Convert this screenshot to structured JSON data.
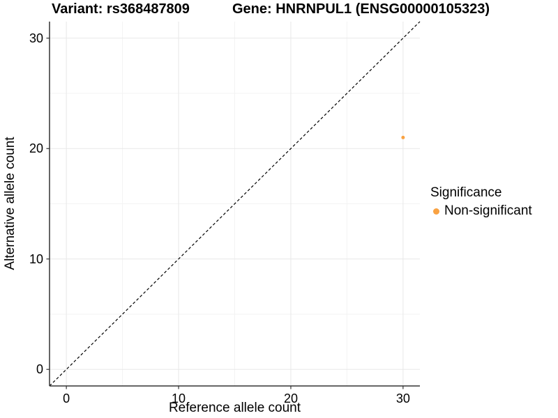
{
  "header": {
    "title_left": "Variant: rs368487809",
    "title_right": "Gene: HNRNPUL1 (ENSG00000105323)"
  },
  "chart_data": {
    "type": "scatter",
    "xlabel": "Reference allele count",
    "ylabel": "Alternative allele count",
    "xlim": [
      -1.5,
      31.5
    ],
    "ylim": [
      -1.5,
      31.5
    ],
    "xticks": [
      0,
      10,
      20,
      30
    ],
    "yticks": [
      0,
      10,
      20,
      30
    ],
    "xminor": [
      5,
      15,
      25
    ],
    "yminor": [
      5,
      15,
      25
    ],
    "grid": "major+minor, light gray on white",
    "points": [
      {
        "x": 30,
        "y": 21,
        "series": "Non-significant",
        "color": "#F9A242",
        "radius": 2.5
      }
    ],
    "reference_line": {
      "kind": "identity y=x",
      "from": [
        -1.5,
        -1.5
      ],
      "to": [
        31.5,
        31.5
      ],
      "style": "dashed",
      "color": "#000000"
    },
    "legend": {
      "title": "Significance",
      "position": "right",
      "entries": [
        {
          "label": "Non-significant",
          "color": "#F9A242"
        }
      ]
    }
  },
  "colors": {
    "background": "#FFFFFF",
    "point_orange": "#F9A242",
    "axis_line": "#333333",
    "tick_mark": "#333333",
    "grid_major": "#E8E8E8",
    "grid_minor": "#F3F3F3",
    "text": "#000000"
  }
}
